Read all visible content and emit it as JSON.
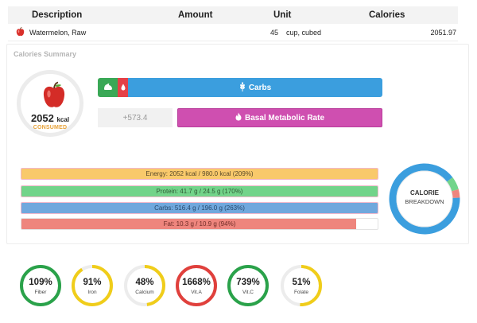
{
  "table": {
    "headers": {
      "description": "Description",
      "amount": "Amount",
      "unit": "Unit",
      "calories": "Calories"
    },
    "rows": [
      {
        "description": "Watermelon, Raw",
        "amount": "45",
        "unit": "cup, cubed",
        "calories": "2051.97",
        "icon": "apple-icon"
      }
    ]
  },
  "summary": {
    "title": "Calories Summary",
    "consumed": {
      "value": "2052",
      "unit": "kcal",
      "label": "CONSUMED"
    },
    "macro_bar": {
      "label": "Carbs",
      "protein_color": "#3aa856",
      "fat_color": "#e54047",
      "carbs_color": "#3b9ede"
    },
    "extra": "+573.4",
    "bmr_label": "Basal Metabolic Rate",
    "nutrients": [
      {
        "key": "energy",
        "label": "Energy: 2052 kcal / 980.0 kcal (209%)",
        "fill_pct": 100
      },
      {
        "key": "protein",
        "label": "Protein: 41.7 g / 24.5 g (170%)",
        "fill_pct": 100
      },
      {
        "key": "carbs",
        "label": "Carbs: 516.4 g / 196.0 g (263%)",
        "fill_pct": 100
      },
      {
        "key": "fat",
        "label": "Fat: 10.3 g / 10.9 g (94%)",
        "fill_pct": 94
      }
    ],
    "breakdown": {
      "title": "CALORIE",
      "subtitle": "BREAKDOWN",
      "carbs_pct": 90,
      "protein_pct": 6,
      "fat_pct": 4
    }
  },
  "micronutrients": [
    {
      "name": "Fiber",
      "pct": "109%",
      "color": "#2aa24a"
    },
    {
      "name": "Iron",
      "pct": "91%",
      "color": "#f0cd1a"
    },
    {
      "name": "Calcium",
      "pct": "48%",
      "color": "#f0cd1a"
    },
    {
      "name": "Vit.A",
      "pct": "1668%",
      "color": "#e0403c"
    },
    {
      "name": "Vit.C",
      "pct": "739%",
      "color": "#2aa24a"
    },
    {
      "name": "Folate",
      "pct": "51%",
      "color": "#f0cd1a"
    }
  ]
}
